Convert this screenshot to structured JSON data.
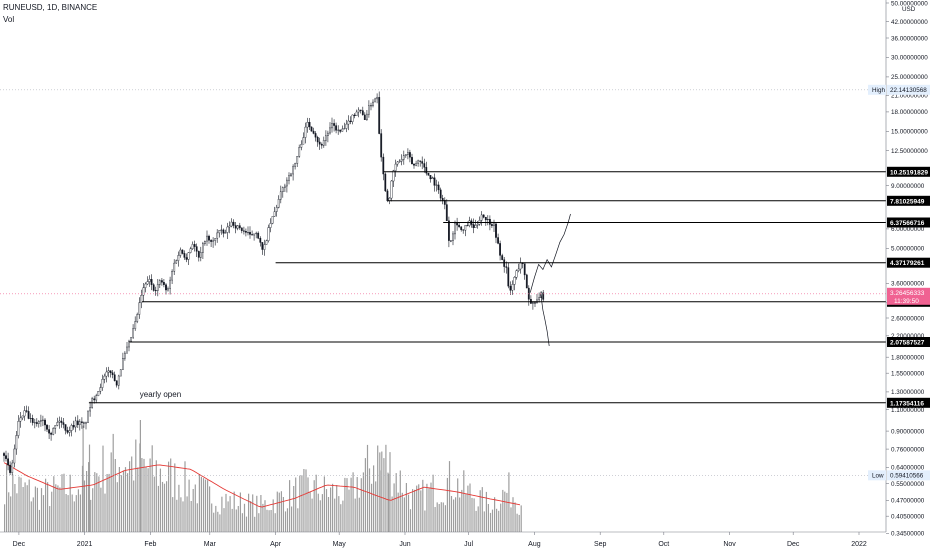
{
  "header": {
    "symbol_line": "RUNEUSD, 1D, BINANCE",
    "volume_label": "Vol"
  },
  "colors": {
    "candle": "#131722",
    "level_line": "#000000",
    "volume_bar": "#9e9e9e",
    "volume_ma": "#e53935",
    "axis_text": "#131722",
    "price_tag_bg": "#000000",
    "price_tag_text": "#ffffff",
    "hl_tag_bg": "#e3effd",
    "current_price_tag_bg": "#f06292"
  },
  "chart_data": {
    "type": "candlestick",
    "scale": "log",
    "axis_unit": "USD",
    "ylim": [
      0.33,
      50.0
    ],
    "x_tick_labels": [
      "Dec",
      "2021",
      "Feb",
      "Mar",
      "Apr",
      "May",
      "Jun",
      "Jul",
      "Aug",
      "Sep",
      "Oct",
      "Nov",
      "Dec",
      "2022"
    ],
    "y_tick_labels": [
      "50.00000000",
      "42.00000000",
      "36.00000000",
      "30.00000000",
      "25.00000000",
      "21.00000000",
      "18.00000000",
      "15.00000000",
      "12.50000000",
      "9.00000000",
      "6.00000000",
      "5.00000000",
      "3.60000000",
      "3.00000000",
      "2.60000000",
      "2.20000000",
      "1.80000000",
      "1.55000000",
      "1.30000000",
      "1.10000000",
      "0.90000000",
      "0.76000000",
      "0.64000000",
      "0.55000000",
      "0.47000000",
      "0.40500000",
      "0.34500000"
    ],
    "levels": [
      {
        "price": 10.25191829,
        "label": "10.25191829",
        "from": "2021-05-22"
      },
      {
        "price": 7.81025949,
        "label": "7.81025949",
        "from": "2021-05-24"
      },
      {
        "price": 6.37566716,
        "label": "6.37566716",
        "from": "2021-06-19"
      },
      {
        "price": 4.37179261,
        "label": "4.37179261",
        "from": "2021-04-01"
      },
      {
        "price": 3.0292943,
        "label": "3.02929430",
        "from": "2021-01-28"
      },
      {
        "price": 2.07587527,
        "label": "2.07587527",
        "from": "2021-01-22"
      },
      {
        "price": 1.17354116,
        "label": "1.17354116",
        "from": "2021-01-03"
      }
    ],
    "current_price": {
      "price": 3.26456333,
      "label": "3.26456333",
      "countdown": "11:39:50"
    },
    "high": {
      "price": 22.14130568,
      "label": "High",
      "value": "22.14130568"
    },
    "low": {
      "price": 0.59410566,
      "label": "Low",
      "value": "0.59410566"
    },
    "annotation": {
      "text": "yearly open",
      "date": "2021-01-27",
      "price": 1.24
    },
    "price_path": [
      [
        "2020-11-24",
        0.73
      ],
      [
        "2020-11-27",
        0.6
      ],
      [
        "2020-12-01",
        1.0
      ],
      [
        "2020-12-04",
        1.08
      ],
      [
        "2020-12-08",
        0.95
      ],
      [
        "2020-12-12",
        1.02
      ],
      [
        "2020-12-16",
        0.88
      ],
      [
        "2020-12-20",
        1.0
      ],
      [
        "2020-12-24",
        0.9
      ],
      [
        "2020-12-28",
        0.98
      ],
      [
        "2021-01-01",
        0.95
      ],
      [
        "2021-01-04",
        1.17
      ],
      [
        "2021-01-07",
        1.3
      ],
      [
        "2021-01-10",
        1.48
      ],
      [
        "2021-01-13",
        1.6
      ],
      [
        "2021-01-16",
        1.4
      ],
      [
        "2021-01-19",
        1.75
      ],
      [
        "2021-01-22",
        2.05
      ],
      [
        "2021-01-25",
        2.5
      ],
      [
        "2021-01-28",
        3.3
      ],
      [
        "2021-01-31",
        3.75
      ],
      [
        "2021-02-03",
        3.4
      ],
      [
        "2021-02-06",
        3.7
      ],
      [
        "2021-02-09",
        3.3
      ],
      [
        "2021-02-12",
        4.3
      ],
      [
        "2021-02-15",
        4.9
      ],
      [
        "2021-02-18",
        4.6
      ],
      [
        "2021-02-21",
        5.3
      ],
      [
        "2021-02-24",
        4.5
      ],
      [
        "2021-02-27",
        5.6
      ],
      [
        "2021-03-02",
        5.2
      ],
      [
        "2021-03-05",
        5.9
      ],
      [
        "2021-03-08",
        5.7
      ],
      [
        "2021-03-11",
        6.4
      ],
      [
        "2021-03-14",
        6.1
      ],
      [
        "2021-03-17",
        5.9
      ],
      [
        "2021-03-20",
        5.6
      ],
      [
        "2021-03-23",
        5.9
      ],
      [
        "2021-03-26",
        4.8
      ],
      [
        "2021-03-29",
        6.1
      ],
      [
        "2021-04-01",
        7.2
      ],
      [
        "2021-04-04",
        8.6
      ],
      [
        "2021-04-07",
        9.8
      ],
      [
        "2021-04-10",
        10.9
      ],
      [
        "2021-04-13",
        13.5
      ],
      [
        "2021-04-16",
        16.2
      ],
      [
        "2021-04-19",
        15.0
      ],
      [
        "2021-04-22",
        13.0
      ],
      [
        "2021-04-25",
        14.5
      ],
      [
        "2021-04-28",
        16.0
      ],
      [
        "2021-05-01",
        14.8
      ],
      [
        "2021-05-04",
        15.5
      ],
      [
        "2021-05-07",
        17.2
      ],
      [
        "2021-05-10",
        18.5
      ],
      [
        "2021-05-13",
        17.0
      ],
      [
        "2021-05-16",
        19.5
      ],
      [
        "2021-05-19",
        21.0
      ],
      [
        "2021-05-20",
        14.0
      ],
      [
        "2021-05-22",
        9.5
      ],
      [
        "2021-05-24",
        7.6
      ],
      [
        "2021-05-27",
        10.8
      ],
      [
        "2021-05-30",
        11.5
      ],
      [
        "2021-06-02",
        12.2
      ],
      [
        "2021-06-05",
        10.8
      ],
      [
        "2021-06-08",
        11.6
      ],
      [
        "2021-06-11",
        10.2
      ],
      [
        "2021-06-14",
        9.6
      ],
      [
        "2021-06-17",
        8.5
      ],
      [
        "2021-06-20",
        7.4
      ],
      [
        "2021-06-22",
        5.2
      ],
      [
        "2021-06-25",
        6.5
      ],
      [
        "2021-06-28",
        5.8
      ],
      [
        "2021-07-01",
        6.4
      ],
      [
        "2021-07-04",
        6.0
      ],
      [
        "2021-07-07",
        6.9
      ],
      [
        "2021-07-10",
        6.5
      ],
      [
        "2021-07-13",
        6.2
      ],
      [
        "2021-07-16",
        4.6
      ],
      [
        "2021-07-19",
        4.1
      ],
      [
        "2021-07-20",
        3.2
      ],
      [
        "2021-07-23",
        3.9
      ],
      [
        "2021-07-26",
        4.5
      ],
      [
        "2021-07-28",
        3.6
      ],
      [
        "2021-07-30",
        2.95
      ],
      [
        "2021-08-02",
        3.1
      ],
      [
        "2021-08-04",
        3.25
      ],
      [
        "2021-08-06",
        2.9
      ]
    ],
    "projection": [
      [
        "2021-07-30",
        3.3
      ],
      [
        "2021-08-01",
        3.8
      ],
      [
        "2021-08-03",
        4.3
      ],
      [
        "2021-08-05",
        4.1
      ],
      [
        "2021-08-07",
        4.5
      ],
      [
        "2021-08-09",
        4.2
      ],
      [
        "2021-08-11",
        4.7
      ],
      [
        "2021-08-13",
        5.3
      ],
      [
        "2021-08-15",
        5.7
      ],
      [
        "2021-08-17",
        6.4
      ],
      [
        "2021-08-18",
        6.9
      ]
    ],
    "projection_down": [
      [
        "2021-08-04",
        3.25
      ],
      [
        "2021-08-05",
        2.8
      ],
      [
        "2021-08-06",
        2.55
      ],
      [
        "2021-08-07",
        2.3
      ],
      [
        "2021-08-08",
        2.0
      ]
    ],
    "volume_profile": [
      [
        "2020-11-24",
        0.55
      ],
      [
        "2020-12-10",
        0.4
      ],
      [
        "2020-12-30",
        0.5
      ],
      [
        "2021-01-15",
        0.78
      ],
      [
        "2021-01-27",
        0.72
      ],
      [
        "2021-02-15",
        0.55
      ],
      [
        "2021-03-05",
        0.35
      ],
      [
        "2021-03-25",
        0.28
      ],
      [
        "2021-04-15",
        0.48
      ],
      [
        "2021-05-05",
        0.4
      ],
      [
        "2021-05-20",
        0.85
      ],
      [
        "2021-06-05",
        0.35
      ],
      [
        "2021-06-22",
        0.55
      ],
      [
        "2021-07-10",
        0.3
      ],
      [
        "2021-07-20",
        0.45
      ],
      [
        "2021-07-26",
        0.3
      ]
    ],
    "volume_ma_path": [
      [
        "2020-11-24",
        0.62
      ],
      [
        "2020-12-05",
        0.5
      ],
      [
        "2020-12-20",
        0.38
      ],
      [
        "2021-01-05",
        0.42
      ],
      [
        "2021-01-20",
        0.55
      ],
      [
        "2021-02-05",
        0.6
      ],
      [
        "2021-02-20",
        0.56
      ],
      [
        "2021-03-08",
        0.38
      ],
      [
        "2021-03-25",
        0.22
      ],
      [
        "2021-04-10",
        0.3
      ],
      [
        "2021-04-25",
        0.42
      ],
      [
        "2021-05-08",
        0.4
      ],
      [
        "2021-05-25",
        0.28
      ],
      [
        "2021-06-10",
        0.4
      ],
      [
        "2021-06-25",
        0.36
      ],
      [
        "2021-07-10",
        0.3
      ],
      [
        "2021-07-26",
        0.24
      ]
    ]
  }
}
